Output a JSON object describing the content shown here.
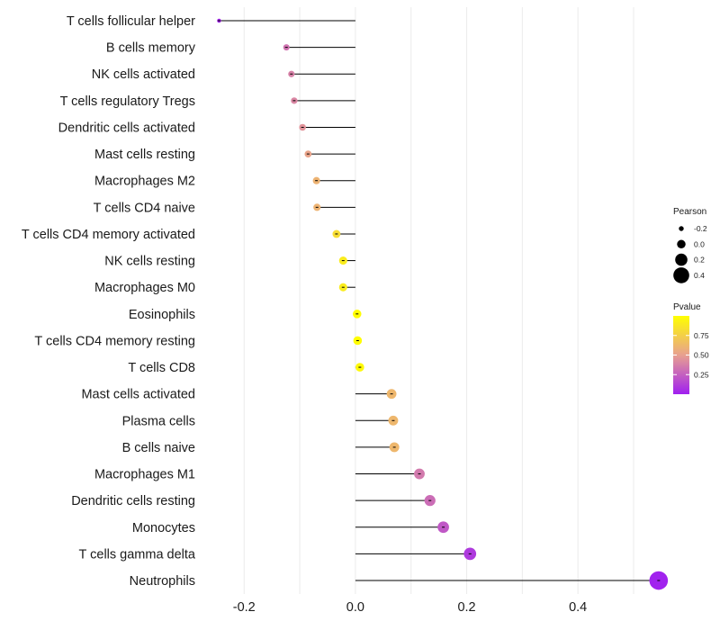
{
  "chart_data": {
    "type": "lollipop",
    "xlabel": "",
    "ylabel": "",
    "xlim": [
      -0.2635,
      0.555
    ],
    "xticks": [
      -0.2,
      0.0,
      0.2,
      0.4
    ],
    "xtick_labels": [
      "-0.2",
      "0.0",
      "0.2",
      "0.4"
    ],
    "grid": true,
    "categories": [
      "T cells follicular helper",
      "B cells memory",
      "NK cells activated",
      "T cells regulatory  Tregs",
      "Dendritic cells activated",
      "Mast cells resting",
      "Macrophages M2",
      "T cells CD4 naive",
      "T cells CD4 memory activated",
      "NK cells resting",
      "Macrophages M0",
      "Eosinophils",
      "T cells CD4 memory resting",
      "T cells CD8",
      "Mast cells activated",
      "Plasma cells",
      "B cells naive",
      "Macrophages M1",
      "Dendritic cells resting",
      "Monocytes",
      "T cells gamma delta",
      "Neutrophils"
    ],
    "pearson": [
      -0.245,
      -0.124,
      -0.115,
      -0.11,
      -0.095,
      -0.085,
      -0.07,
      -0.069,
      -0.034,
      -0.022,
      -0.022,
      0.003,
      0.004,
      0.008,
      0.065,
      0.068,
      0.07,
      0.115,
      0.134,
      0.158,
      0.206,
      0.545
    ],
    "pvalue": [
      0.02,
      0.33,
      0.38,
      0.4,
      0.45,
      0.52,
      0.6,
      0.6,
      0.82,
      0.9,
      0.9,
      0.99,
      0.99,
      0.97,
      0.62,
      0.62,
      0.62,
      0.35,
      0.3,
      0.22,
      0.1,
      0.01
    ],
    "legend": {
      "size": {
        "title": "Pearson",
        "values": [
          -0.2,
          0.0,
          0.2,
          0.4
        ],
        "labels": [
          "-0.2",
          "0.0",
          "0.2",
          "0.4"
        ]
      },
      "color": {
        "title": "Pvalue",
        "ticks": [
          0.25,
          0.5,
          0.75
        ],
        "labels": [
          "0.25",
          "0.50",
          "0.75"
        ],
        "range": [
          0.0,
          1.0
        ],
        "low_color": "#A020F0",
        "mid_color": "#E8A090",
        "high_color": "#FFFF00"
      },
      "position": "right"
    },
    "colors": {
      "stem": "#000000",
      "grid": "#ebebeb",
      "background": "#ffffff"
    }
  }
}
